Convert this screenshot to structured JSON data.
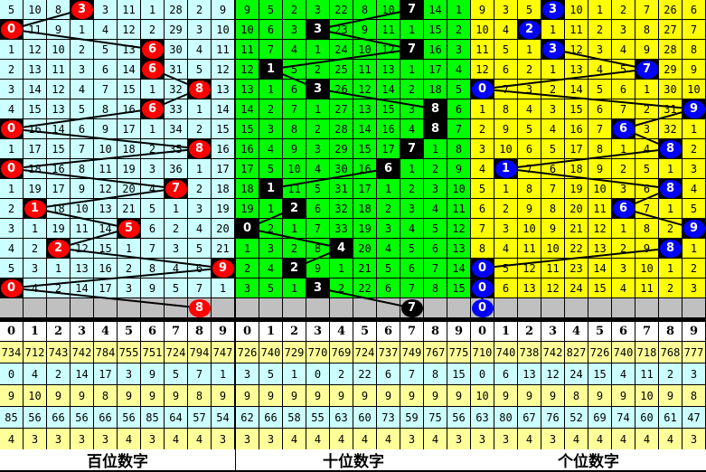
{
  "panels": [
    {
      "title": "百位数字",
      "cell_color": "#ccffff",
      "ball_color": "#ff0000",
      "rows": [
        [
          "5",
          "10",
          "8",
          "3",
          "3",
          "11",
          "1",
          "28",
          "2",
          "9"
        ],
        [
          "0",
          "11",
          "9",
          "1",
          "4",
          "12",
          "2",
          "29",
          "3",
          "10"
        ],
        [
          "1",
          "12",
          "10",
          "2",
          "5",
          "13",
          "6",
          "30",
          "4",
          "11"
        ],
        [
          "2",
          "13",
          "11",
          "3",
          "6",
          "14",
          "6",
          "31",
          "5",
          "12"
        ],
        [
          "3",
          "14",
          "12",
          "4",
          "7",
          "15",
          "1",
          "32",
          "8",
          "13"
        ],
        [
          "4",
          "15",
          "13",
          "5",
          "8",
          "16",
          "6",
          "33",
          "1",
          "14"
        ],
        [
          "0",
          "16",
          "14",
          "6",
          "9",
          "17",
          "1",
          "34",
          "2",
          "15"
        ],
        [
          "1",
          "17",
          "15",
          "7",
          "10",
          "18",
          "2",
          "35",
          "8",
          "16"
        ],
        [
          "0",
          "18",
          "16",
          "8",
          "11",
          "19",
          "3",
          "36",
          "1",
          "17"
        ],
        [
          "1",
          "19",
          "17",
          "9",
          "12",
          "20",
          "4",
          "7",
          "2",
          "18"
        ],
        [
          "2",
          "1",
          "18",
          "10",
          "13",
          "21",
          "5",
          "1",
          "3",
          "19"
        ],
        [
          "3",
          "1",
          "19",
          "11",
          "14",
          "5",
          "6",
          "2",
          "4",
          "20"
        ],
        [
          "4",
          "2",
          "2",
          "12",
          "15",
          "1",
          "7",
          "3",
          "5",
          "21"
        ],
        [
          "5",
          "3",
          "1",
          "13",
          "16",
          "2",
          "8",
          "4",
          "6",
          "9"
        ],
        [
          "0",
          "4",
          "2",
          "14",
          "17",
          "3",
          "9",
          "5",
          "7",
          "1"
        ]
      ],
      "draws": [
        3,
        0,
        6,
        6,
        8,
        6,
        0,
        8,
        0,
        7,
        1,
        5,
        2,
        9,
        0
      ],
      "next": 8,
      "stats": [
        [
          "734",
          "712",
          "743",
          "742",
          "784",
          "755",
          "751",
          "724",
          "794",
          "747"
        ],
        [
          "0",
          "4",
          "2",
          "14",
          "17",
          "3",
          "9",
          "5",
          "7",
          "1"
        ],
        [
          "9",
          "10",
          "9",
          "9",
          "8",
          "9",
          "9",
          "9",
          "8",
          "9"
        ],
        [
          "85",
          "56",
          "66",
          "56",
          "66",
          "56",
          "85",
          "64",
          "57",
          "54"
        ],
        [
          "4",
          "3",
          "3",
          "3",
          "3",
          "4",
          "3",
          "4",
          "4",
          "3"
        ]
      ]
    },
    {
      "title": "十位数字",
      "cell_color": "#00ff00",
      "ball_color": "#000000",
      "rows": [
        [
          "9",
          "5",
          "2",
          "3",
          "22",
          "8",
          "10",
          "7",
          "14",
          "1"
        ],
        [
          "10",
          "6",
          "3",
          "3",
          "23",
          "9",
          "11",
          "1",
          "15",
          "2"
        ],
        [
          "11",
          "7",
          "4",
          "1",
          "24",
          "10",
          "12",
          "7",
          "16",
          "3"
        ],
        [
          "12",
          "1",
          "5",
          "2",
          "25",
          "11",
          "13",
          "1",
          "17",
          "4"
        ],
        [
          "13",
          "1",
          "6",
          "3",
          "26",
          "12",
          "14",
          "2",
          "18",
          "5"
        ],
        [
          "14",
          "2",
          "7",
          "1",
          "27",
          "13",
          "15",
          "3",
          "8",
          "6"
        ],
        [
          "15",
          "3",
          "8",
          "2",
          "28",
          "14",
          "16",
          "4",
          "8",
          "7"
        ],
        [
          "16",
          "4",
          "9",
          "3",
          "29",
          "15",
          "17",
          "7",
          "1",
          "8"
        ],
        [
          "17",
          "5",
          "10",
          "4",
          "30",
          "16",
          "6",
          "1",
          "2",
          "9"
        ],
        [
          "18",
          "1",
          "11",
          "5",
          "31",
          "17",
          "1",
          "2",
          "3",
          "10"
        ],
        [
          "19",
          "1",
          "2",
          "6",
          "32",
          "18",
          "2",
          "3",
          "4",
          "11"
        ],
        [
          "0",
          "2",
          "1",
          "7",
          "33",
          "19",
          "3",
          "4",
          "5",
          "12"
        ],
        [
          "1",
          "3",
          "2",
          "8",
          "4",
          "20",
          "4",
          "5",
          "6",
          "13"
        ],
        [
          "2",
          "4",
          "2",
          "9",
          "1",
          "21",
          "5",
          "6",
          "7",
          "14"
        ],
        [
          "3",
          "5",
          "1",
          "3",
          "2",
          "22",
          "6",
          "7",
          "8",
          "15"
        ]
      ],
      "draws": [
        7,
        3,
        7,
        1,
        3,
        8,
        8,
        7,
        6,
        1,
        2,
        0,
        4,
        2,
        3
      ],
      "next": 7,
      "stats": [
        [
          "726",
          "740",
          "729",
          "770",
          "769",
          "724",
          "737",
          "749",
          "767",
          "775"
        ],
        [
          "3",
          "5",
          "1",
          "0",
          "2",
          "22",
          "6",
          "7",
          "8",
          "15"
        ],
        [
          "9",
          "9",
          "9",
          "9",
          "9",
          "9",
          "9",
          "9",
          "9",
          "9"
        ],
        [
          "62",
          "66",
          "58",
          "55",
          "63",
          "60",
          "73",
          "59",
          "75",
          "56"
        ],
        [
          "3",
          "3",
          "4",
          "4",
          "4",
          "4",
          "4",
          "3",
          "4",
          "3"
        ]
      ]
    },
    {
      "title": "个位数字",
      "cell_color": "#ffff00",
      "ball_color": "#0000ff",
      "rows": [
        [
          "9",
          "3",
          "5",
          "3",
          "10",
          "1",
          "2",
          "7",
          "26",
          "6"
        ],
        [
          "10",
          "4",
          "2",
          "1",
          "11",
          "2",
          "3",
          "8",
          "27",
          "7"
        ],
        [
          "11",
          "5",
          "1",
          "3",
          "12",
          "3",
          "4",
          "9",
          "28",
          "8"
        ],
        [
          "12",
          "6",
          "2",
          "1",
          "13",
          "4",
          "5",
          "7",
          "29",
          "9"
        ],
        [
          "0",
          "7",
          "3",
          "2",
          "14",
          "5",
          "6",
          "1",
          "30",
          "10"
        ],
        [
          "1",
          "8",
          "4",
          "3",
          "15",
          "6",
          "7",
          "2",
          "31",
          "9"
        ],
        [
          "2",
          "9",
          "5",
          "4",
          "16",
          "7",
          "6",
          "3",
          "32",
          "1"
        ],
        [
          "3",
          "10",
          "6",
          "5",
          "17",
          "8",
          "1",
          "4",
          "8",
          "2"
        ],
        [
          "4",
          "1",
          "7",
          "6",
          "18",
          "9",
          "2",
          "5",
          "1",
          "3"
        ],
        [
          "5",
          "1",
          "8",
          "7",
          "19",
          "10",
          "3",
          "6",
          "8",
          "4"
        ],
        [
          "6",
          "2",
          "9",
          "8",
          "20",
          "11",
          "6",
          "7",
          "1",
          "5"
        ],
        [
          "7",
          "3",
          "10",
          "9",
          "21",
          "12",
          "1",
          "8",
          "2",
          "9"
        ],
        [
          "8",
          "4",
          "11",
          "10",
          "22",
          "13",
          "2",
          "9",
          "8",
          "1"
        ],
        [
          "0",
          "5",
          "12",
          "11",
          "23",
          "14",
          "3",
          "10",
          "1",
          "2"
        ],
        [
          "0",
          "6",
          "13",
          "12",
          "24",
          "15",
          "4",
          "11",
          "2",
          "3"
        ]
      ],
      "draws": [
        3,
        2,
        3,
        7,
        0,
        9,
        6,
        8,
        1,
        8,
        6,
        9,
        8,
        0,
        0
      ],
      "next": 0,
      "stats": [
        [
          "710",
          "740",
          "738",
          "742",
          "827",
          "726",
          "740",
          "718",
          "768",
          "777"
        ],
        [
          "0",
          "6",
          "13",
          "12",
          "24",
          "15",
          "4",
          "11",
          "2",
          "3"
        ],
        [
          "10",
          "9",
          "9",
          "9",
          "8",
          "9",
          "9",
          "10",
          "9",
          "8"
        ],
        [
          "63",
          "80",
          "67",
          "76",
          "52",
          "69",
          "74",
          "60",
          "61",
          "47"
        ],
        [
          "3",
          "3",
          "4",
          "3",
          "4",
          "4",
          "4",
          "4",
          "4",
          "3"
        ]
      ]
    }
  ],
  "digits": [
    "0",
    "1",
    "2",
    "3",
    "4",
    "5",
    "6",
    "7",
    "8",
    "9"
  ],
  "colors": {
    "gray": "#c0c0c0",
    "stat_yellow": "#ffff99",
    "stat_cyan": "#ccffff"
  }
}
